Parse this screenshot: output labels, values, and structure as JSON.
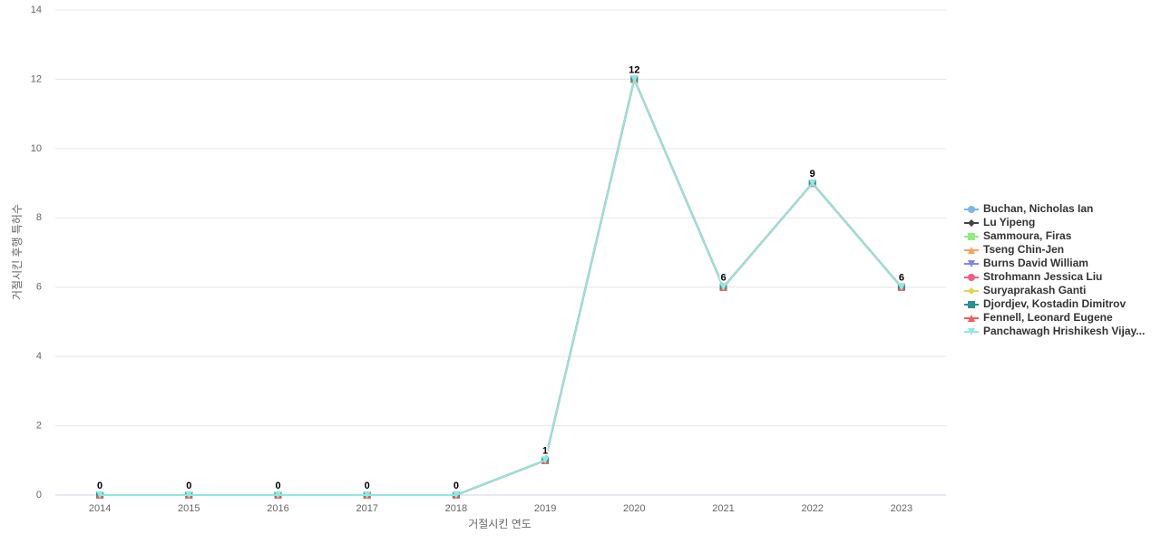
{
  "chart_data": {
    "type": "line",
    "x_label": "거절시킨 연도",
    "y_label": "거절시킨 후행 특허수",
    "categories": [
      "2014",
      "2015",
      "2016",
      "2017",
      "2018",
      "2019",
      "2020",
      "2021",
      "2022",
      "2023"
    ],
    "ylim": [
      0,
      14
    ],
    "yticks": [
      0,
      2,
      4,
      6,
      8,
      10,
      12,
      14
    ],
    "grid": true,
    "legend": "right",
    "series": [
      {
        "name": "Buchan, Nicholas Ian",
        "color": "#7cb5ec",
        "symbol": "circle",
        "values": [
          0,
          0,
          0,
          0,
          0,
          1,
          12,
          6,
          9,
          6
        ]
      },
      {
        "name": "Lu Yipeng",
        "color": "#434348",
        "symbol": "diamond",
        "values": [
          0,
          0,
          0,
          0,
          0,
          1,
          12,
          6,
          9,
          6
        ]
      },
      {
        "name": "Sammoura, Firas",
        "color": "#90ed7d",
        "symbol": "square",
        "values": [
          0,
          0,
          0,
          0,
          0,
          1,
          12,
          6,
          9,
          6
        ]
      },
      {
        "name": "Tseng Chin-Jen",
        "color": "#f7a35c",
        "symbol": "triangle",
        "values": [
          0,
          0,
          0,
          0,
          0,
          1,
          12,
          6,
          9,
          6
        ]
      },
      {
        "name": "Burns David William",
        "color": "#8085e9",
        "symbol": "triangle-down",
        "values": [
          0,
          0,
          0,
          0,
          0,
          1,
          12,
          6,
          9,
          6
        ]
      },
      {
        "name": "Strohmann Jessica Liu",
        "color": "#f15c80",
        "symbol": "circle",
        "values": [
          0,
          0,
          0,
          0,
          0,
          1,
          12,
          6,
          9,
          6
        ]
      },
      {
        "name": "Suryaprakash Ganti",
        "color": "#e4d354",
        "symbol": "diamond",
        "values": [
          0,
          0,
          0,
          0,
          0,
          1,
          12,
          6,
          9,
          6
        ]
      },
      {
        "name": "Djordjev, Kostadin Dimitrov",
        "color": "#2b908f",
        "symbol": "square",
        "values": [
          0,
          0,
          0,
          0,
          0,
          1,
          12,
          6,
          9,
          6
        ]
      },
      {
        "name": "Fennell, Leonard Eugene",
        "color": "#f45b5b",
        "symbol": "triangle",
        "values": [
          0,
          0,
          0,
          0,
          0,
          1,
          12,
          6,
          9,
          6
        ]
      },
      {
        "name": "Panchawagh Hrishikesh Vijay...",
        "color": "#91e8e1",
        "symbol": "triangle-down",
        "values": [
          0,
          0,
          0,
          0,
          0,
          1,
          12,
          6,
          9,
          6
        ]
      }
    ]
  }
}
